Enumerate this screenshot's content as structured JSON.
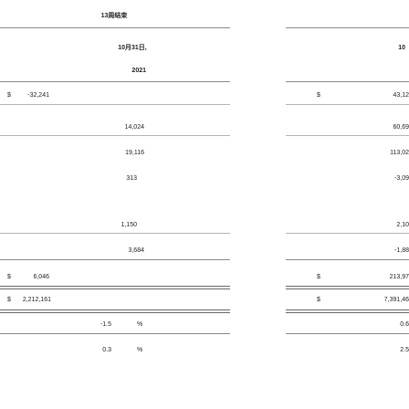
{
  "header": {
    "period_label": "13周结束",
    "left_date": "10月31日,",
    "right_date": "10",
    "year": "2021"
  },
  "currency_symbol": "$",
  "rows": [
    {
      "left": "-32,241",
      "right": "43,12"
    },
    {
      "left": "14,024",
      "right": "60,69"
    },
    {
      "left": "19,116",
      "right": "113,02"
    },
    {
      "left": "313",
      "right": "-3,09"
    },
    {
      "left": "1,150",
      "right": "2,10"
    },
    {
      "left": "3,684",
      "right": "-1,88"
    },
    {
      "left": "6,046",
      "right": "213,97"
    },
    {
      "left": "2,212,161",
      "right": "7,391,46"
    },
    {
      "left": "-1.5",
      "unit": "%",
      "right": "0.6"
    },
    {
      "left": "0.3",
      "unit": "%",
      "right": "2.5"
    }
  ]
}
